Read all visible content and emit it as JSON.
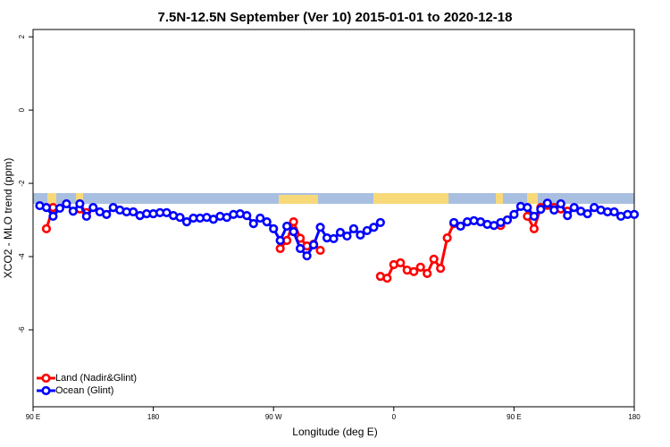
{
  "chart_data": {
    "type": "line",
    "title": "7.5N-12.5N September (Ver 10)   2015-01-01 to 2020-12-18",
    "x_label": "Longitude (deg E)",
    "y_label": "XCO2 - MLO trend (ppm)",
    "x": [
      95,
      100,
      105,
      110,
      115,
      120,
      125,
      130,
      135,
      140,
      145,
      150,
      155,
      160,
      165,
      170,
      175,
      180,
      185,
      190,
      195,
      200,
      205,
      210,
      215,
      220,
      225,
      230,
      235,
      240,
      245,
      250,
      255,
      260,
      265,
      270,
      275,
      280,
      285,
      290,
      295,
      300,
      305,
      310,
      315,
      320,
      325,
      330,
      335,
      340,
      345,
      350,
      355,
      360,
      365,
      370,
      375,
      380,
      385,
      390,
      395,
      400,
      405,
      410,
      415,
      420,
      425,
      430,
      435,
      440,
      445,
      450,
      455,
      460,
      465,
      470,
      475,
      480,
      485,
      490,
      495,
      500,
      505,
      510,
      515,
      520,
      525,
      530,
      535,
      540
    ],
    "series": [
      {
        "name": "Land (Nadir&Glint)",
        "color": "#ff0000",
        "values": [
          null,
          -3.24,
          -2.66,
          null,
          null,
          null,
          -2.7,
          -2.8,
          null,
          null,
          null,
          null,
          null,
          null,
          null,
          null,
          null,
          null,
          null,
          null,
          null,
          null,
          null,
          null,
          null,
          null,
          null,
          null,
          null,
          null,
          null,
          null,
          null,
          null,
          null,
          null,
          -3.78,
          -3.56,
          -3.05,
          -3.5,
          -3.71,
          -3.66,
          -3.83,
          null,
          null,
          null,
          null,
          null,
          null,
          null,
          null,
          -4.54,
          -4.59,
          -4.22,
          -4.17,
          -4.37,
          -4.41,
          -4.29,
          -4.46,
          -4.07,
          -4.32,
          -3.49,
          -3.1,
          null,
          null,
          null,
          null,
          null,
          null,
          -3.15,
          -3.0,
          null,
          null,
          -2.9,
          -3.24,
          -2.66,
          -2.6,
          -2.66,
          -2.7,
          -2.76,
          null,
          null,
          null,
          null,
          null,
          null,
          null,
          null,
          null,
          null
        ]
      },
      {
        "name": "Ocean (Glint)",
        "color": "#0000ff",
        "values": [
          -2.61,
          -2.66,
          -2.9,
          -2.68,
          -2.56,
          -2.76,
          -2.56,
          -2.9,
          -2.66,
          -2.78,
          -2.85,
          -2.66,
          -2.73,
          -2.78,
          -2.78,
          -2.88,
          -2.83,
          -2.83,
          -2.8,
          -2.8,
          -2.88,
          -2.93,
          -3.05,
          -2.95,
          -2.95,
          -2.93,
          -2.98,
          -2.9,
          -2.93,
          -2.85,
          -2.83,
          -2.88,
          -3.1,
          -2.95,
          -3.05,
          -3.24,
          -3.56,
          -3.17,
          -3.32,
          -3.78,
          -3.98,
          -3.68,
          -3.2,
          -3.49,
          -3.51,
          -3.34,
          -3.44,
          -3.24,
          -3.41,
          -3.29,
          -3.2,
          -3.07,
          null,
          null,
          null,
          null,
          null,
          null,
          null,
          null,
          null,
          null,
          -3.07,
          -3.17,
          -3.05,
          -3.02,
          -3.05,
          -3.12,
          -3.15,
          -3.07,
          -3.0,
          -2.85,
          -2.63,
          -2.66,
          -2.9,
          -2.71,
          -2.54,
          -2.73,
          -2.56,
          -2.88,
          -2.66,
          -2.76,
          -2.83,
          -2.66,
          -2.73,
          -2.78,
          -2.78,
          -2.9,
          -2.85,
          -2.85
        ]
      }
    ],
    "xlim": [
      90,
      540
    ],
    "xticks": [
      {
        "value": 90,
        "label": "90 E"
      },
      180,
      {
        "value": 270,
        "label": "90 W"
      },
      {
        "value": 360,
        "label": "0"
      },
      {
        "value": 450,
        "label": "90 E"
      },
      {
        "value": 540,
        "label": "180"
      }
    ],
    "ylim": [
      -8.1,
      2.2
    ],
    "yticks": [
      -6,
      -4,
      -2,
      0,
      2
    ],
    "legend": "bottom-left"
  }
}
